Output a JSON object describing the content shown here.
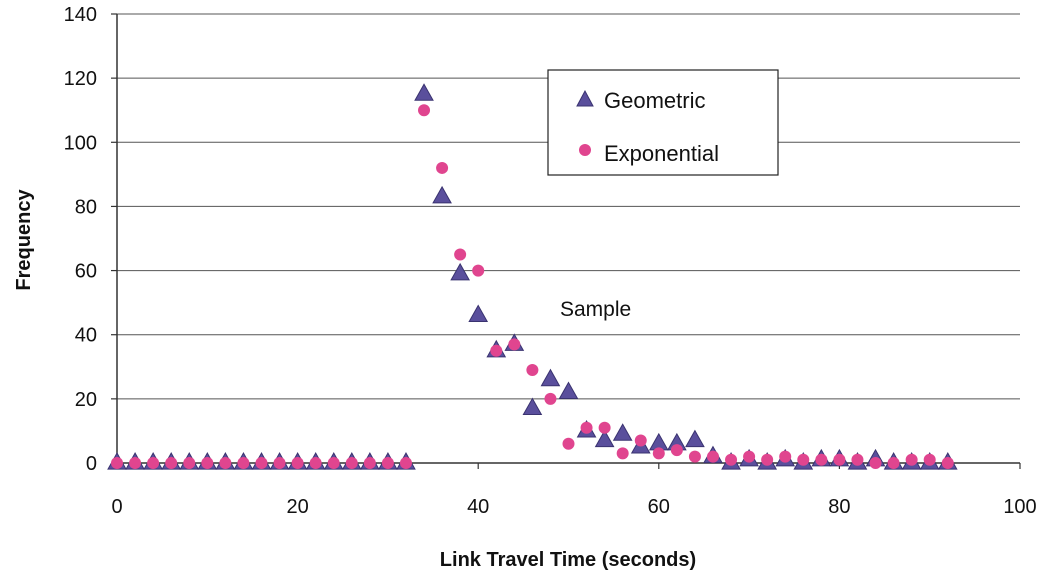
{
  "chart_data": {
    "type": "scatter",
    "title": "",
    "xlabel": "Link Travel Time (seconds)",
    "ylabel": "Frequency",
    "xlim": [
      0,
      100
    ],
    "ylim": [
      0,
      140
    ],
    "xticks": [
      0,
      20,
      40,
      60,
      80,
      100
    ],
    "yticks": [
      0,
      20,
      40,
      60,
      80,
      100,
      120,
      140
    ],
    "grid": "horizontal",
    "legend_position": "top-right",
    "annotations": [
      "Sample"
    ],
    "series": [
      {
        "name": "Geometric",
        "marker": "triangle",
        "color": "#5a4f9c",
        "x": [
          0,
          2,
          4,
          6,
          8,
          10,
          12,
          14,
          16,
          18,
          20,
          22,
          24,
          26,
          28,
          30,
          32,
          34,
          36,
          38,
          40,
          42,
          44,
          46,
          48,
          50,
          52,
          54,
          56,
          58,
          60,
          62,
          64,
          66,
          68,
          70,
          72,
          74,
          76,
          78,
          80,
          82,
          84,
          86,
          88,
          90,
          92
        ],
        "y": [
          0,
          0,
          0,
          0,
          0,
          0,
          0,
          0,
          0,
          0,
          0,
          0,
          0,
          0,
          0,
          0,
          0,
          115,
          83,
          59,
          46,
          35,
          37,
          17,
          26,
          22,
          10,
          7,
          9,
          5,
          6,
          6,
          7,
          2,
          0,
          1,
          0,
          1,
          0,
          1,
          1,
          0,
          1,
          0,
          0,
          0,
          0
        ]
      },
      {
        "name": "Exponential",
        "marker": "circle",
        "color": "#e0458f",
        "x": [
          0,
          2,
          4,
          6,
          8,
          10,
          12,
          14,
          16,
          18,
          20,
          22,
          24,
          26,
          28,
          30,
          32,
          34,
          36,
          38,
          40,
          42,
          44,
          46,
          48,
          50,
          52,
          54,
          56,
          58,
          60,
          62,
          64,
          66,
          68,
          70,
          72,
          74,
          76,
          78,
          80,
          82,
          84,
          86,
          88,
          90,
          92
        ],
        "y": [
          0,
          0,
          0,
          0,
          0,
          0,
          0,
          0,
          0,
          0,
          0,
          0,
          0,
          0,
          0,
          0,
          0,
          110,
          92,
          65,
          60,
          35,
          37,
          29,
          20,
          6,
          11,
          11,
          3,
          7,
          3,
          4,
          2,
          2,
          1,
          2,
          1,
          2,
          1,
          1,
          1,
          1,
          0,
          0,
          1,
          1,
          0
        ]
      }
    ]
  }
}
